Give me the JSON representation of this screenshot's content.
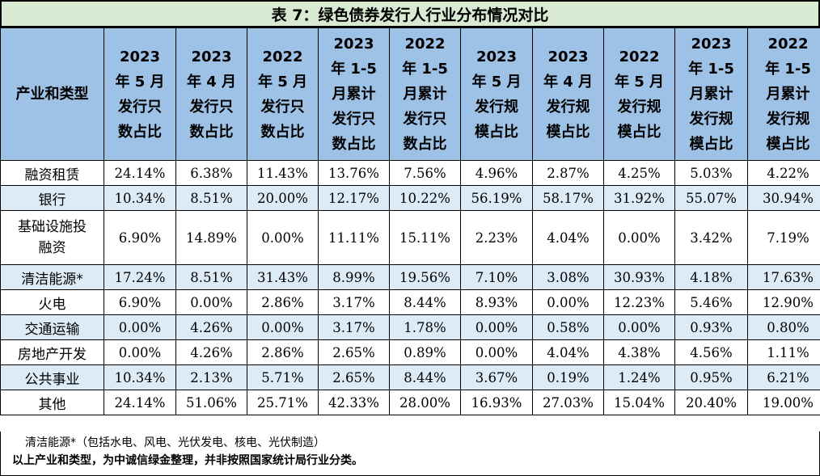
{
  "title": "表 7：绿色债券发行人行业分布情况对比",
  "header": {
    "category": "产业和类型",
    "columns": [
      [
        "2023",
        "年 5 月",
        "发行只",
        "数占比"
      ],
      [
        "2023",
        "年 4 月",
        "发行只",
        "数占比"
      ],
      [
        "2022",
        "年 5 月",
        "发行只",
        "数占比"
      ],
      [
        "2023",
        "年 1-5",
        "月累计",
        "发行只",
        "数占比"
      ],
      [
        "2022",
        "年 1-5",
        "月累计",
        "发行只",
        "数占比"
      ],
      [
        "2023",
        "年 5 月",
        "发行规",
        "模占比"
      ],
      [
        "2023",
        "年 4 月",
        "发行规",
        "模占比"
      ],
      [
        "2022",
        "年 5 月",
        "发行规",
        "模占比"
      ],
      [
        "2023",
        "年 1-5",
        "月累计",
        "发行规",
        "模占比"
      ],
      [
        "2022",
        "年 1-5",
        "月累计",
        "发行规",
        "模占比"
      ]
    ]
  },
  "rows": [
    {
      "category": [
        "融资租赁"
      ],
      "values": [
        "24.14%",
        "6.38%",
        "11.43%",
        "13.76%",
        "7.56%",
        "4.96%",
        "2.87%",
        "4.25%",
        "5.03%",
        "4.22%"
      ]
    },
    {
      "category": [
        "银行"
      ],
      "values": [
        "10.34%",
        "8.51%",
        "20.00%",
        "12.17%",
        "10.22%",
        "56.19%",
        "58.17%",
        "31.92%",
        "55.07%",
        "30.94%"
      ]
    },
    {
      "category": [
        "基础设施投",
        "融资"
      ],
      "values": [
        "6.90%",
        "14.89%",
        "0.00%",
        "11.11%",
        "15.11%",
        "2.23%",
        "4.04%",
        "0.00%",
        "3.42%",
        "7.19%"
      ]
    },
    {
      "category": [
        "清洁能源*"
      ],
      "values": [
        "17.24%",
        "8.51%",
        "31.43%",
        "8.99%",
        "19.56%",
        "7.10%",
        "3.08%",
        "30.93%",
        "4.18%",
        "17.63%"
      ]
    },
    {
      "category": [
        "火电"
      ],
      "values": [
        "6.90%",
        "0.00%",
        "2.86%",
        "3.17%",
        "8.44%",
        "8.93%",
        "0.00%",
        "12.23%",
        "5.46%",
        "12.90%"
      ]
    },
    {
      "category": [
        "交通运输"
      ],
      "values": [
        "0.00%",
        "4.26%",
        "0.00%",
        "3.17%",
        "1.78%",
        "0.00%",
        "0.58%",
        "0.00%",
        "0.93%",
        "0.80%"
      ]
    },
    {
      "category": [
        "房地产开发"
      ],
      "values": [
        "0.00%",
        "4.26%",
        "2.86%",
        "2.65%",
        "0.89%",
        "0.00%",
        "4.04%",
        "4.38%",
        "4.56%",
        "1.11%"
      ]
    },
    {
      "category": [
        "公共事业"
      ],
      "values": [
        "10.34%",
        "2.13%",
        "5.71%",
        "2.65%",
        "8.44%",
        "3.67%",
        "0.19%",
        "1.24%",
        "0.95%",
        "6.21%"
      ]
    },
    {
      "category": [
        "其他"
      ],
      "values": [
        "24.14%",
        "51.06%",
        "25.71%",
        "42.33%",
        "28.00%",
        "16.93%",
        "27.03%",
        "15.04%",
        "20.40%",
        "19.00%"
      ]
    }
  ],
  "notes": {
    "note1": "清洁能源*（包括水电、风电、光伏发电、核电、光伏制造）",
    "note2": "以上产业和类型，为中诚信绿金整理，并非按照国家统计局行业分类。"
  },
  "colors": {
    "title_bg": "#d9ead3",
    "header_bg": "#9ec1e6",
    "alt_row_bg": "#ddebf7"
  }
}
